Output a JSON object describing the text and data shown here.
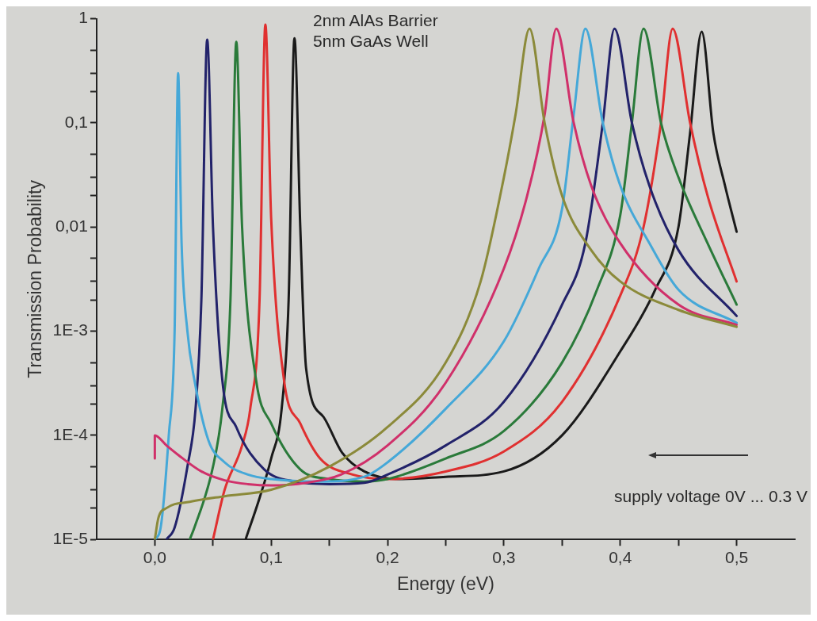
{
  "chart_data": {
    "type": "line",
    "xlabel": "Energy (eV)",
    "ylabel": "Transmission Probability",
    "log": true,
    "marker": "none",
    "line_style": "solid",
    "xlim": [
      -0.05,
      0.55
    ],
    "xticks": [
      {
        "value": 0,
        "label": "0,0"
      },
      {
        "value": 0.05,
        "label": null
      },
      {
        "value": 0.1,
        "label": "0,1"
      },
      {
        "value": 0.15,
        "label": null
      },
      {
        "value": 0.2,
        "label": "0,2"
      },
      {
        "value": 0.25,
        "label": null
      },
      {
        "value": 0.3,
        "label": "0,3"
      },
      {
        "value": 0.35,
        "label": null
      },
      {
        "value": 0.4,
        "label": "0,4"
      },
      {
        "value": 0.45,
        "label": null
      },
      {
        "value": 0.5,
        "label": "0,5"
      }
    ],
    "ylim": [
      1e-05,
      1
    ],
    "yticks": [
      {
        "value": 1e-05,
        "label": "1E-5"
      },
      {
        "value": 2e-05,
        "label": null
      },
      {
        "value": 3e-05,
        "label": null
      },
      {
        "value": 5e-05,
        "label": null
      },
      {
        "value": 0.0001,
        "label": "1E-4"
      },
      {
        "value": 0.0002,
        "label": null
      },
      {
        "value": 0.0003,
        "label": null
      },
      {
        "value": 0.0005,
        "label": null
      },
      {
        "value": 0.001,
        "label": "1E-3"
      },
      {
        "value": 0.002,
        "label": null
      },
      {
        "value": 0.003,
        "label": null
      },
      {
        "value": 0.005,
        "label": null
      },
      {
        "value": 0.01,
        "label": "0,01"
      },
      {
        "value": 0.02,
        "label": null
      },
      {
        "value": 0.03,
        "label": null
      },
      {
        "value": 0.05,
        "label": null
      },
      {
        "value": 0.1,
        "label": "0,1"
      },
      {
        "value": 0.2,
        "label": null
      },
      {
        "value": 0.3,
        "label": null
      },
      {
        "value": 0.5,
        "label": null
      },
      {
        "value": 1,
        "label": "1"
      }
    ],
    "annotations": [
      "2nm AlAs Barrier",
      "5nm GaAs Well",
      "supply voltage 0V ... 0.3 V"
    ],
    "series": [
      {
        "color": "#8b8a3a",
        "x": [
          0,
          0.003,
          0.01,
          0.03,
          0.06,
          0.1,
          0.15,
          0.2,
          0.25,
          0.28,
          0.3,
          0.31,
          0.322,
          0.335,
          0.35,
          0.375,
          0.4,
          0.45,
          0.5
        ],
        "values": [
          1e-05,
          1.6e-05,
          2e-05,
          2.3e-05,
          2.6e-05,
          3e-05,
          5e-05,
          0.00012,
          0.0005,
          0.003,
          0.03,
          0.12,
          0.8,
          0.1,
          0.02,
          0.006,
          0.003,
          0.0016,
          0.0011
        ]
      },
      {
        "color": "#d0306a",
        "x": [
          0,
          0,
          0.01,
          0.02,
          0.04,
          0.06,
          0.08,
          0.1,
          0.13,
          0.16,
          0.2,
          0.25,
          0.3,
          0.32,
          0.335,
          0.345,
          0.36,
          0.375,
          0.4,
          0.45,
          0.5
        ],
        "values": [
          6e-05,
          0.0001,
          8e-05,
          6.5e-05,
          4.5e-05,
          3.7e-05,
          3.4e-05,
          3.3e-05,
          3.5e-05,
          4.2e-05,
          8e-05,
          0.00032,
          0.004,
          0.02,
          0.12,
          0.8,
          0.1,
          0.025,
          0.007,
          0.0018,
          0.00115
        ]
      },
      {
        "color": "#45a8d8",
        "x": [
          0,
          0.005,
          0.012,
          0.017,
          0.02,
          0.023,
          0.028,
          0.034,
          0.046,
          0.06,
          0.08,
          0.1,
          0.14,
          0.18,
          0.2,
          0.25,
          0.3,
          0.33,
          0.35,
          0.36,
          0.37,
          0.385,
          0.4,
          0.425,
          0.45,
          0.5
        ],
        "values": [
          1e-05,
          1.3e-05,
          0.0001,
          0.001,
          0.3,
          0.007,
          0.001,
          0.00034,
          9e-05,
          5.5e-05,
          4.2e-05,
          3.8e-05,
          3.6e-05,
          4e-05,
          5.5e-05,
          0.00018,
          0.0008,
          0.004,
          0.015,
          0.12,
          0.8,
          0.1,
          0.025,
          0.007,
          0.0025,
          0.0012
        ]
      },
      {
        "color": "#22226a",
        "x": [
          0.01,
          0.017,
          0.028,
          0.035,
          0.04,
          0.045,
          0.05,
          0.058,
          0.07,
          0.094,
          0.12,
          0.15,
          0.18,
          0.2,
          0.25,
          0.3,
          0.35,
          0.37,
          0.385,
          0.395,
          0.41,
          0.425,
          0.45,
          0.5
        ],
        "values": [
          1e-05,
          1.3e-05,
          5e-05,
          0.00018,
          0.002,
          0.63,
          0.01,
          0.00034,
          0.00012,
          4.7e-05,
          3.6e-05,
          3.4e-05,
          3.5e-05,
          4.2e-05,
          8e-05,
          0.00021,
          0.0018,
          0.007,
          0.1,
          0.8,
          0.1,
          0.025,
          0.006,
          0.0014
        ]
      },
      {
        "color": "#2a7a3a",
        "x": [
          0.03,
          0.034,
          0.05,
          0.058,
          0.065,
          0.07,
          0.075,
          0.087,
          0.1,
          0.125,
          0.15,
          0.18,
          0.2,
          0.25,
          0.3,
          0.35,
          0.38,
          0.4,
          0.41,
          0.42,
          0.435,
          0.45,
          0.475,
          0.5
        ],
        "values": [
          1e-05,
          1.3e-05,
          5e-05,
          0.00018,
          0.002,
          0.6,
          0.01,
          0.00034,
          0.00013,
          4.7e-05,
          3.8e-05,
          3.6e-05,
          3.8e-05,
          6e-05,
          0.00011,
          0.0005,
          0.0025,
          0.013,
          0.1,
          0.8,
          0.1,
          0.03,
          0.007,
          0.0018
        ]
      },
      {
        "color": "#e03030",
        "x": [
          0.05,
          0.06,
          0.075,
          0.082,
          0.09,
          0.095,
          0.1,
          0.111,
          0.125,
          0.142,
          0.17,
          0.2,
          0.25,
          0.3,
          0.35,
          0.4,
          0.42,
          0.435,
          0.445,
          0.46,
          0.475,
          0.5
        ],
        "values": [
          1e-05,
          3e-05,
          8e-05,
          0.00018,
          0.002,
          0.88,
          0.012,
          0.00034,
          0.00013,
          6e-05,
          4.2e-05,
          3.8e-05,
          4.5e-05,
          7e-05,
          0.00021,
          0.0022,
          0.01,
          0.1,
          0.8,
          0.1,
          0.02,
          0.003
        ]
      },
      {
        "color": "#1a1a1a",
        "x": [
          0.078,
          0.09,
          0.1,
          0.109,
          0.115,
          0.12,
          0.125,
          0.13,
          0.145,
          0.161,
          0.18,
          0.21,
          0.25,
          0.3,
          0.35,
          0.4,
          0.43,
          0.45,
          0.46,
          0.47,
          0.48,
          0.49,
          0.5
        ],
        "values": [
          1e-05,
          2.5e-05,
          6e-05,
          0.00018,
          0.002,
          0.65,
          0.01,
          0.00044,
          0.00015,
          6.8e-05,
          4.5e-05,
          3.8e-05,
          4e-05,
          4.5e-05,
          0.0001,
          0.00064,
          0.0025,
          0.01,
          0.08,
          0.75,
          0.08,
          0.025,
          0.009
        ]
      }
    ]
  }
}
